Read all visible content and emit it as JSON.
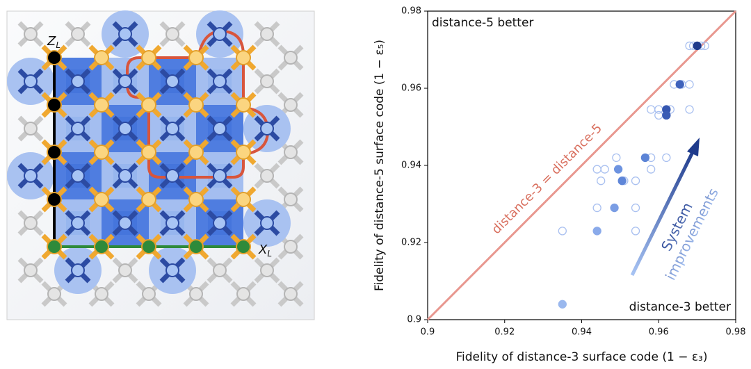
{
  "chart_data": {
    "type": "scatter",
    "xlabel": "Fidelity of distance-3 surface code (1 − ε₃)",
    "ylabel": "Fidelity of distance-5 surface code (1 − ε₅)",
    "xlim": [
      0.9,
      0.98
    ],
    "ylim": [
      0.9,
      0.98
    ],
    "xticks": [
      0.9,
      0.92,
      0.94,
      0.96,
      0.98
    ],
    "yticks": [
      0.9,
      0.92,
      0.94,
      0.96,
      0.98
    ],
    "series": [
      {
        "marker": "open",
        "color": "#a9c0f0",
        "x": [
          0.935,
          0.954,
          0.944,
          0.954,
          0.945,
          0.951,
          0.954,
          0.944,
          0.946,
          0.958,
          0.949,
          0.958,
          0.962,
          0.958,
          0.96,
          0.962,
          0.963,
          0.968,
          0.96,
          0.962,
          0.964,
          0.966,
          0.968,
          0.968,
          0.969,
          0.971,
          0.972
        ],
        "values": [
          0.923,
          0.923,
          0.929,
          0.929,
          0.936,
          0.936,
          0.936,
          0.939,
          0.939,
          0.939,
          0.942,
          0.942,
          0.942,
          0.9545,
          0.9545,
          0.9545,
          0.9545,
          0.9545,
          0.953,
          0.953,
          0.961,
          0.961,
          0.961,
          0.971,
          0.971,
          0.971,
          0.971
        ]
      },
      {
        "marker": "filled",
        "colors": [
          "#9ab8ee",
          "#8aaaea",
          "#7a9de4",
          "#6d93e0",
          "#5f86d8",
          "#5c84d6",
          "#3556b0",
          "#3a5cb4",
          "#3e62bc",
          "#1f3b8c"
        ],
        "x": [
          0.935,
          0.944,
          0.9485,
          0.9495,
          0.9505,
          0.9565,
          0.962,
          0.962,
          0.9655,
          0.97
        ],
        "values": [
          0.904,
          0.923,
          0.929,
          0.939,
          0.936,
          0.942,
          0.9545,
          0.953,
          0.961,
          0.971
        ]
      }
    ],
    "identity_line": {
      "label": "distance-3 = distance-5",
      "color": "#e8978f"
    },
    "annotations": [
      "distance-5 better",
      "distance-3 better"
    ],
    "arrow_label": [
      "System",
      "improvements"
    ]
  },
  "diagram": {
    "z_logical": {
      "symbol": "Z",
      "subscript": "L"
    },
    "x_logical": {
      "symbol": "X",
      "subscript": "L"
    }
  }
}
